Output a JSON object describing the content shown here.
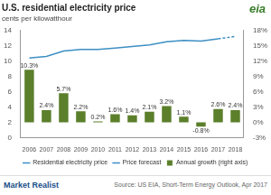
{
  "chart_data": {
    "type": "bar",
    "title": "U.S. residential electricity price",
    "subtitle": "cents per kilowatthour",
    "categories": [
      "2006",
      "2007",
      "2008",
      "2009",
      "2010",
      "2011",
      "2012",
      "2013",
      "2014",
      "2015",
      "2016",
      "2017",
      "2018"
    ],
    "series": [
      {
        "name": "Annual growth (right axis)",
        "type": "bar",
        "axis": "y2",
        "color": "#5b7f2b",
        "values": [
          10.3,
          2.4,
          5.7,
          2.2,
          0.2,
          1.6,
          1.4,
          2.1,
          3.2,
          1.1,
          -0.8,
          2.6,
          2.4
        ],
        "value_labels": [
          "10.3%",
          "2.4%",
          "5.7%",
          "2.2%",
          "0.2%",
          "1.6%",
          "1.4%",
          "2.1%",
          "3.2%",
          "1.1%",
          "-0.8%",
          "2.6%",
          "2.4%"
        ]
      },
      {
        "name": "Residential electricity price",
        "type": "line",
        "color": "#3d8fc4",
        "values": [
          10.4,
          10.6,
          11.3,
          11.5,
          11.5,
          11.7,
          11.9,
          12.1,
          12.5,
          12.7,
          12.6,
          12.9,
          null
        ]
      },
      {
        "name": "Price forecast",
        "type": "line",
        "color": "#3d8fc4",
        "line_style": "dashed",
        "values": [
          null,
          null,
          null,
          null,
          null,
          null,
          null,
          null,
          null,
          null,
          null,
          12.9,
          13.2
        ]
      }
    ],
    "ylim": [
      0,
      14
    ],
    "yticks": [
      0,
      2,
      4,
      6,
      8,
      10,
      12,
      14
    ],
    "y2lim": [
      -3,
      18
    ],
    "y2ticks": [
      {
        "value": -3,
        "label": "-3%"
      },
      {
        "value": 0,
        "label": "0%"
      },
      {
        "value": 3,
        "label": "3%"
      },
      {
        "value": 6,
        "label": "6%"
      },
      {
        "value": 9,
        "label": "9%"
      },
      {
        "value": 12,
        "label": "12%"
      },
      {
        "value": 15,
        "label": "15%"
      },
      {
        "value": 18,
        "label": "18%"
      }
    ],
    "grid": false,
    "legend": "bottom",
    "data_labels": true,
    "source": "Source: US EIA, Short-Term Energy Outlook, Apr 2017",
    "annotations": [
      "eia",
      "Market Realist"
    ]
  }
}
